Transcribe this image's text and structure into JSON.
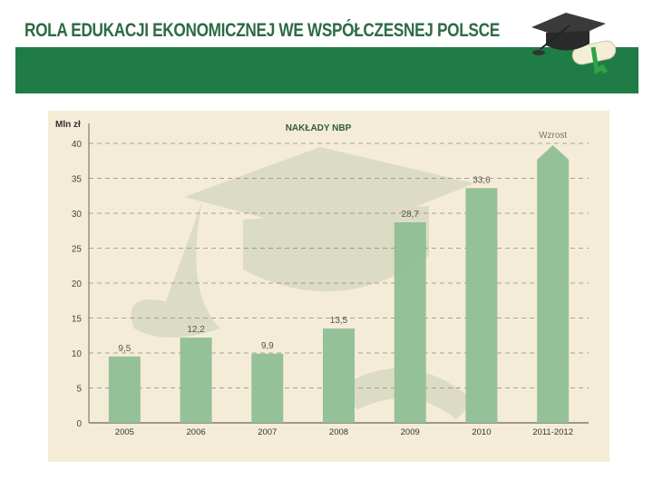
{
  "header": {
    "title": "ROLA EDUKACJI EKONOMICZNEJ WE WSPÓŁCZESNEJ POLSCE",
    "icon": "graduation-cap-diploma-icon"
  },
  "colors": {
    "title_text": "#2e6a44",
    "band": "#1f7c46",
    "panel_bg": "#f5ecd8",
    "bar": "#8fbf95",
    "axis": "#555555"
  },
  "chart_data": {
    "type": "bar",
    "title": "NAKŁADY NBP",
    "ylabel": "Mln zł",
    "xlabel": "",
    "ylim": [
      0,
      40
    ],
    "yticks": [
      "0",
      "5",
      "10",
      "15",
      "20",
      "25",
      "30",
      "35",
      "40"
    ],
    "grid": "horizontal dashed",
    "categories": [
      "2005",
      "2006",
      "2007",
      "2008",
      "2009",
      "2010",
      "2011-2012"
    ],
    "values": [
      9.5,
      12.2,
      9.9,
      13.5,
      28.7,
      33.6,
      null
    ],
    "value_labels": [
      "9,5",
      "12,2",
      "9,9",
      "13,5",
      "28,7",
      "33,6",
      "Wzrost"
    ],
    "last_bar_arrow": true
  }
}
